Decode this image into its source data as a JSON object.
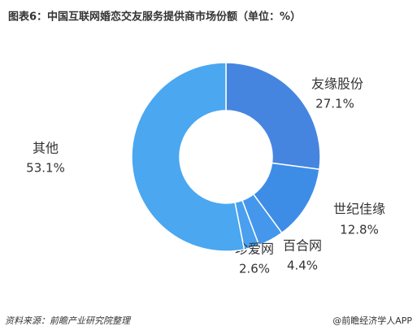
{
  "chart_data": {
    "type": "donut",
    "title": "图表6：中国互联网婚恋交友服务提供商市场份额（单位：%）",
    "categories": [
      "友缘股份",
      "世纪佳缘",
      "百合网",
      "珍爱网",
      "其他"
    ],
    "values": [
      27.1,
      12.8,
      4.4,
      2.6,
      53.1
    ],
    "value_labels": [
      "27.1%",
      "12.8%",
      "4.4%",
      "2.6%",
      "53.1%"
    ],
    "colors": [
      "#4585e0",
      "#3d8de6",
      "#4597ec",
      "#4a9fee",
      "#4aa7f0"
    ],
    "source": "资料来源：前瞻产业研究院整理",
    "watermark": "@前瞻经济学人APP"
  }
}
